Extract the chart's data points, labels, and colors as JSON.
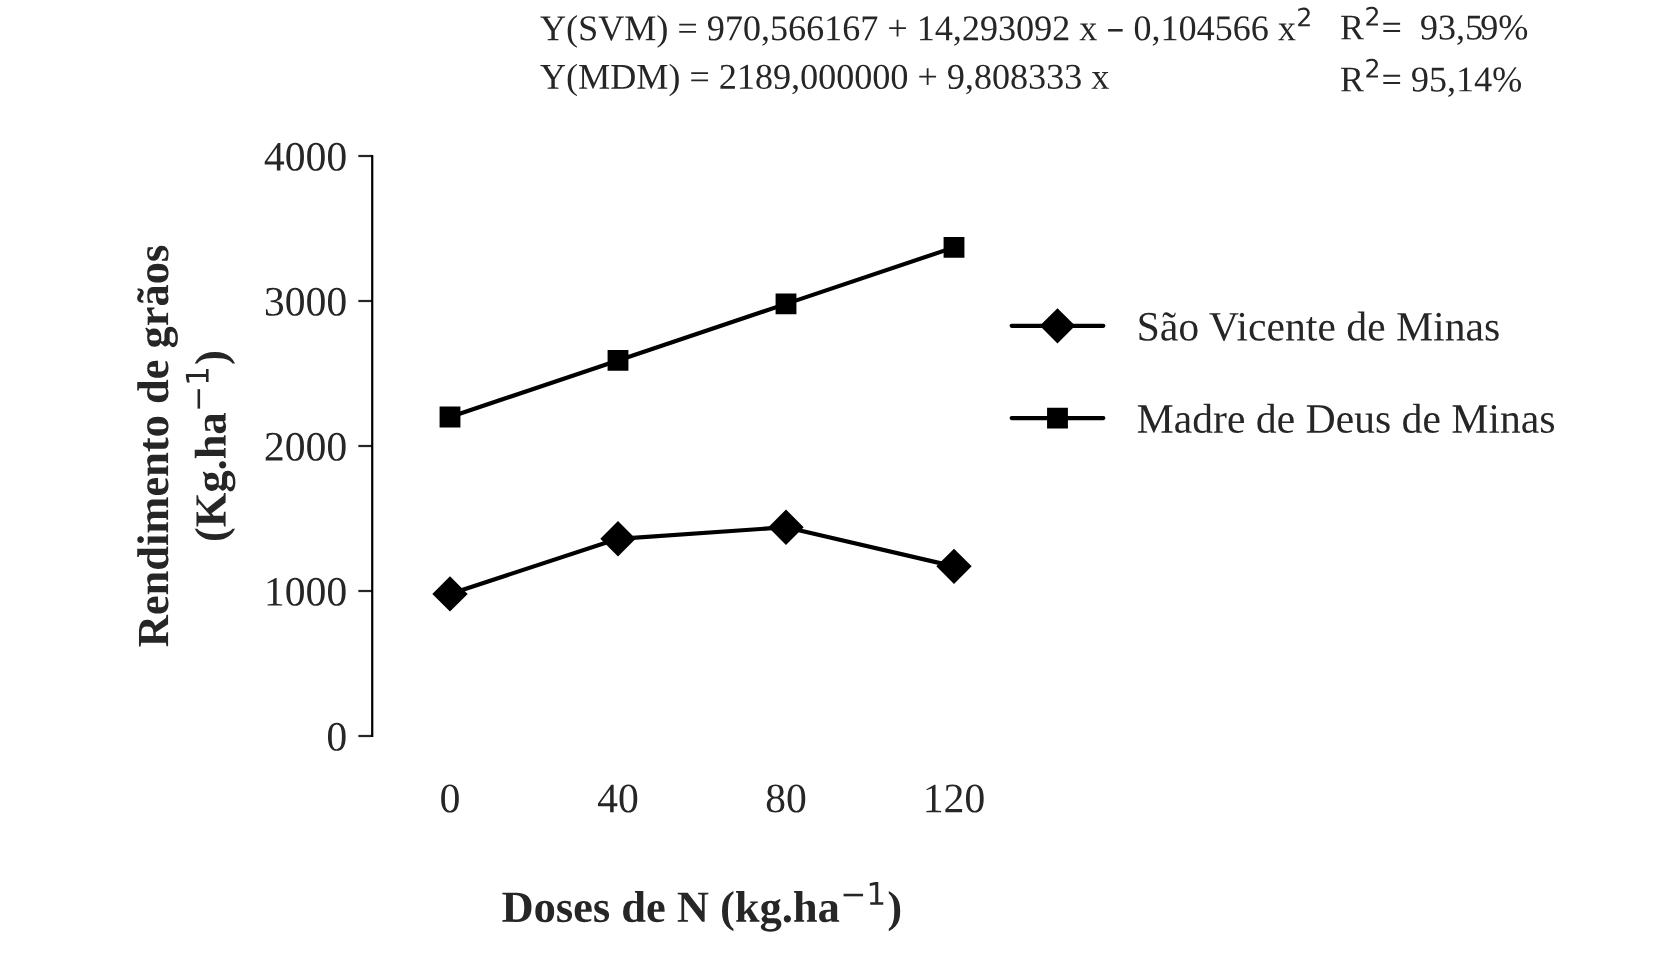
{
  "chart_data": {
    "type": "line",
    "xlabel": "Doses de N (kg.ha$^{−1}$)",
    "ylabel": "Rendimento de grãos\n(Kg.ha$^{−1}$)",
    "x": [
      0,
      40,
      80,
      120
    ],
    "xlim": [
      0,
      120
    ],
    "xticks": [
      0,
      40,
      80,
      120
    ],
    "ylim": [
      0,
      4000
    ],
    "yticks": [
      0,
      1000,
      2000,
      3000,
      4000
    ],
    "series": [
      {
        "name": "São Vicente de Minas",
        "color": "#000000",
        "marker": "diamond",
        "values": [
          980,
          1360,
          1440,
          1170
        ]
      },
      {
        "name": "Madre de Deus de Minas",
        "color": "#000000",
        "marker": "square",
        "values": [
          2200,
          2590,
          2980,
          3370
        ]
      }
    ],
    "legend": "right",
    "grid": false,
    "annotations": [
      "Y(SVM) = 970,566167 + 14,293092 x – 0,104566 x$^{2}$",
      "R$^{2}$=  93,59%",
      "Y(MDM) = 2189,000000 + 9,808333 x",
      "R$^{2}$= 95,14%"
    ]
  }
}
